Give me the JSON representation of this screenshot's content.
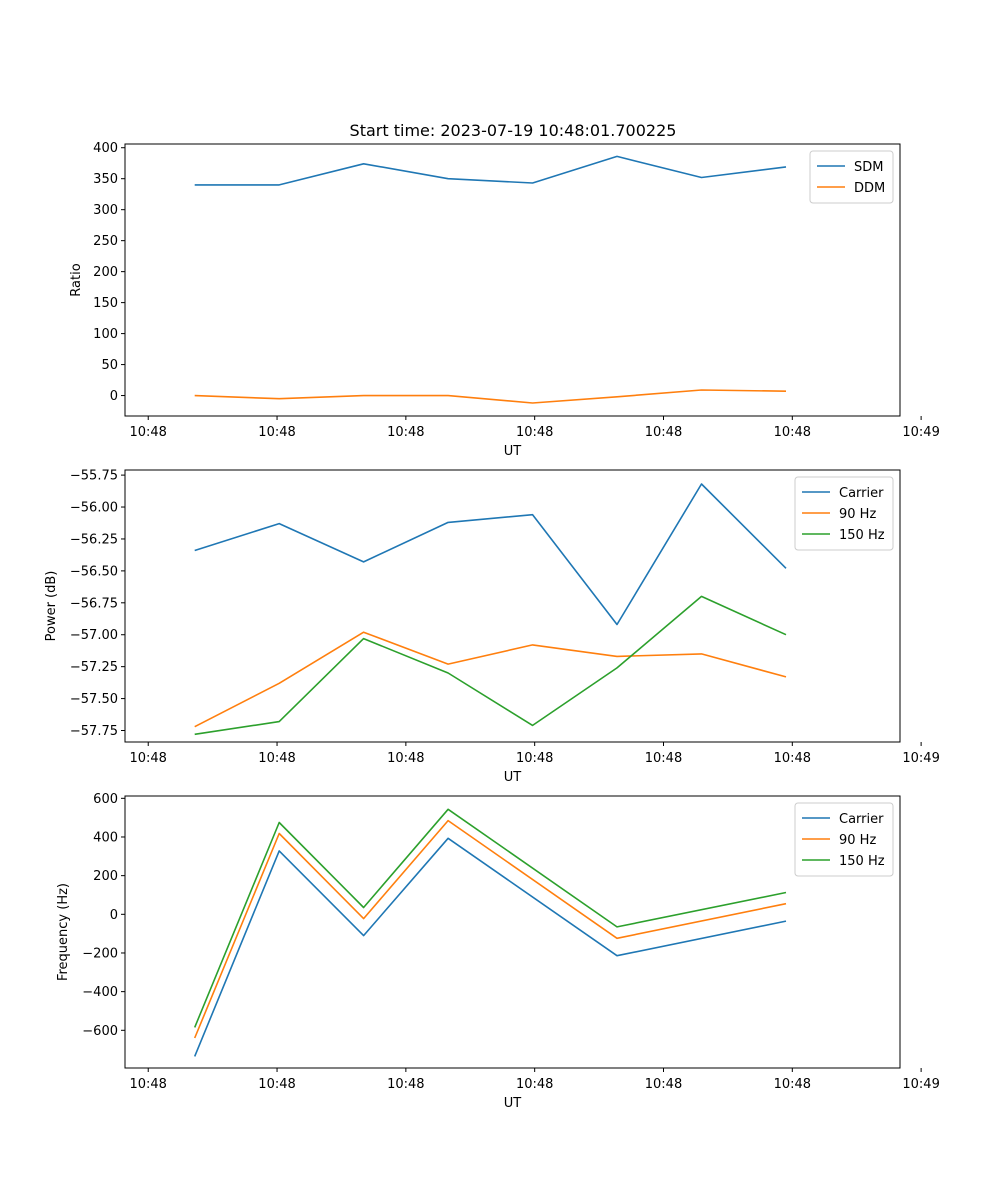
{
  "figure": {
    "title": "Start time: 2023-07-19 10:48:01.700225"
  },
  "chart_data": [
    {
      "type": "line",
      "title": "Start time: 2023-07-19 10:48:01.700225",
      "xlabel": "UT",
      "ylabel": "Ratio",
      "x": [
        1,
        2,
        3,
        4,
        5,
        6,
        7,
        8
      ],
      "xlim": [
        0.175,
        9.35
      ],
      "ylim": [
        -33,
        406
      ],
      "yticks": [
        0,
        50,
        100,
        150,
        200,
        250,
        300,
        350,
        400
      ],
      "xticks": [
        0.45,
        1.975,
        3.5,
        5.025,
        6.55,
        8.075,
        9.6
      ],
      "xticklabels": [
        "10:48",
        "10:48",
        "10:48",
        "10:48",
        "10:48",
        "10:48",
        "10:49"
      ],
      "legend": "top-right",
      "series": [
        {
          "name": "SDM",
          "color": "#1f77b4",
          "values": [
            340,
            340,
            374,
            350,
            343,
            386,
            352,
            369
          ]
        },
        {
          "name": "DDM",
          "color": "#ff7f0e",
          "values": [
            0,
            -5,
            0,
            0,
            -12,
            -2,
            9,
            7
          ]
        }
      ]
    },
    {
      "type": "line",
      "xlabel": "UT",
      "ylabel": "Power (dB)",
      "x": [
        1,
        2,
        3,
        4,
        5,
        6,
        7,
        8
      ],
      "xlim": [
        0.175,
        9.35
      ],
      "ylim": [
        -57.84,
        -55.71
      ],
      "yticks": [
        -57.75,
        -57.5,
        -57.25,
        -57.0,
        -56.75,
        -56.5,
        -56.25,
        -56.0,
        -55.75
      ],
      "yticklabels": [
        "−57.75",
        "−57.50",
        "−57.25",
        "−57.00",
        "−56.75",
        "−56.50",
        "−56.25",
        "−56.00",
        "−55.75"
      ],
      "xticks": [
        0.45,
        1.975,
        3.5,
        5.025,
        6.55,
        8.075,
        9.6
      ],
      "xticklabels": [
        "10:48",
        "10:48",
        "10:48",
        "10:48",
        "10:48",
        "10:48",
        "10:49"
      ],
      "legend": "top-right",
      "series": [
        {
          "name": "Carrier",
          "color": "#1f77b4",
          "values": [
            -56.34,
            -56.13,
            -56.43,
            -56.12,
            -56.06,
            -56.92,
            -55.82,
            -56.48
          ]
        },
        {
          "name": "90 Hz",
          "color": "#ff7f0e",
          "values": [
            -57.72,
            -57.38,
            -56.98,
            -57.23,
            -57.08,
            -57.17,
            -57.15,
            -57.33
          ]
        },
        {
          "name": "150 Hz",
          "color": "#2ca02c",
          "values": [
            -57.78,
            -57.68,
            -57.03,
            -57.3,
            -57.71,
            -57.26,
            -56.7,
            -57.0
          ]
        }
      ]
    },
    {
      "type": "line",
      "xlabel": "UT",
      "ylabel": "Frequency (Hz)",
      "x": [
        1,
        2,
        3,
        4,
        5,
        6,
        7,
        8
      ],
      "xlim": [
        0.175,
        9.35
      ],
      "ylim": [
        -795,
        612
      ],
      "yticks": [
        -600,
        -400,
        -200,
        0,
        200,
        400,
        600
      ],
      "yticklabels": [
        "−600",
        "−400",
        "−200",
        "0",
        "200",
        "400",
        "600"
      ],
      "xticks": [
        0.45,
        1.975,
        3.5,
        5.025,
        6.55,
        8.075,
        9.6
      ],
      "xticklabels": [
        "10:48",
        "10:48",
        "10:48",
        "10:48",
        "10:48",
        "10:48",
        "10:49"
      ],
      "legend": "top-right",
      "series": [
        {
          "name": "Carrier",
          "color": "#1f77b4",
          "values": [
            -735,
            328,
            -110,
            393,
            null,
            -214,
            null,
            -35
          ]
        },
        {
          "name": "90 Hz",
          "color": "#ff7f0e",
          "values": [
            -640,
            418,
            -22,
            485,
            null,
            -124,
            null,
            55
          ]
        },
        {
          "name": "150 Hz",
          "color": "#2ca02c",
          "values": [
            -585,
            475,
            35,
            543,
            null,
            -65,
            null,
            113
          ]
        }
      ]
    }
  ]
}
